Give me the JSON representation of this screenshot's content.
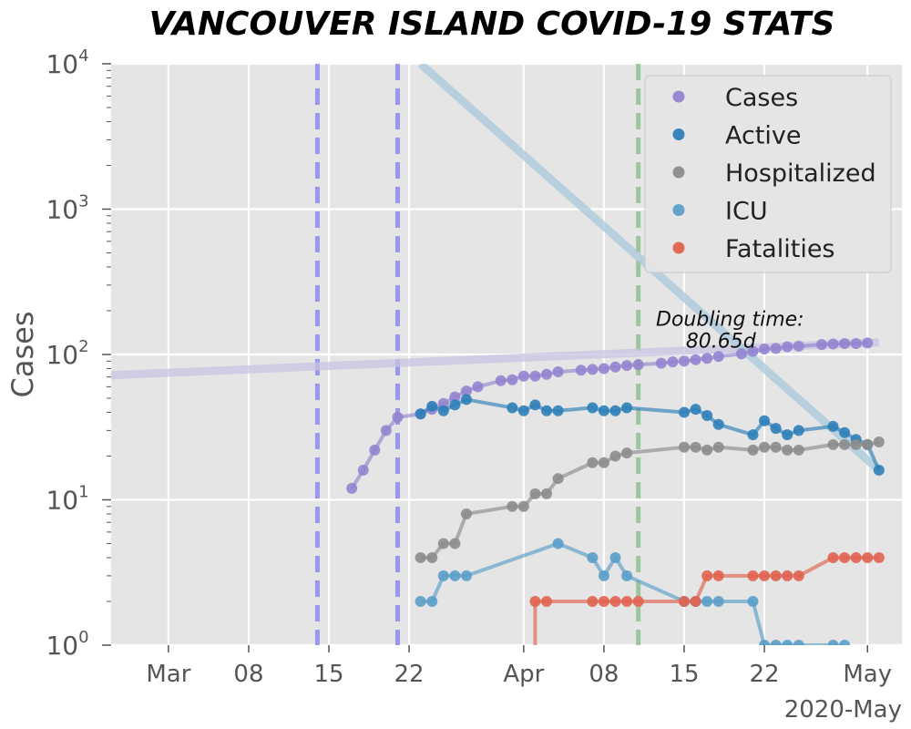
{
  "chart_data": {
    "type": "line",
    "title": "VANCOUVER ISLAND COVID-19 STATS",
    "ylabel": "Cases",
    "xlabel": "",
    "x_offset_label": "2020-May",
    "y_scale": "log",
    "ylim": [
      1,
      10000
    ],
    "xlim": [
      "2020-02-25",
      "2020-05-04"
    ],
    "grid": true,
    "legend_position": "top-right",
    "x_tick_labels": [
      {
        "date": "2020-03-01",
        "label": "Mar"
      },
      {
        "date": "2020-03-08",
        "label": "08"
      },
      {
        "date": "2020-03-15",
        "label": "15"
      },
      {
        "date": "2020-03-22",
        "label": "22"
      },
      {
        "date": "2020-04-01",
        "label": "Apr"
      },
      {
        "date": "2020-04-08",
        "label": "08"
      },
      {
        "date": "2020-04-15",
        "label": "15"
      },
      {
        "date": "2020-04-22",
        "label": "22"
      },
      {
        "date": "2020-05-01",
        "label": "May"
      }
    ],
    "y_tick_labels": [
      {
        "value": 1,
        "base": "10",
        "exp": "0"
      },
      {
        "value": 10,
        "base": "10",
        "exp": "1"
      },
      {
        "value": 100,
        "base": "10",
        "exp": "2"
      },
      {
        "value": 1000,
        "base": "10",
        "exp": "3"
      },
      {
        "value": 10000,
        "base": "10",
        "exp": "4"
      }
    ],
    "series": [
      {
        "name": "Cases",
        "color": "#9484cf",
        "points": [
          [
            "2020-03-17",
            12
          ],
          [
            "2020-03-18",
            16
          ],
          [
            "2020-03-19",
            22
          ],
          [
            "2020-03-20",
            30
          ],
          [
            "2020-03-21",
            37
          ],
          [
            "2020-03-23",
            39
          ],
          [
            "2020-03-24",
            42
          ],
          [
            "2020-03-25",
            46
          ],
          [
            "2020-03-26",
            51
          ],
          [
            "2020-03-27",
            56
          ],
          [
            "2020-03-28",
            60
          ],
          [
            "2020-03-30",
            66
          ],
          [
            "2020-03-31",
            67
          ],
          [
            "2020-04-01",
            71
          ],
          [
            "2020-04-02",
            71
          ],
          [
            "2020-04-03",
            73
          ],
          [
            "2020-04-04",
            76
          ],
          [
            "2020-04-06",
            78
          ],
          [
            "2020-04-07",
            79
          ],
          [
            "2020-04-08",
            80
          ],
          [
            "2020-04-09",
            82
          ],
          [
            "2020-04-10",
            84
          ],
          [
            "2020-04-11",
            85
          ],
          [
            "2020-04-13",
            87
          ],
          [
            "2020-04-14",
            89
          ],
          [
            "2020-04-15",
            90
          ],
          [
            "2020-04-16",
            92
          ],
          [
            "2020-04-17",
            94
          ],
          [
            "2020-04-18",
            97
          ],
          [
            "2020-04-20",
            101
          ],
          [
            "2020-04-21",
            105
          ],
          [
            "2020-04-22",
            109
          ],
          [
            "2020-04-23",
            110
          ],
          [
            "2020-04-24",
            113
          ],
          [
            "2020-04-25",
            114
          ],
          [
            "2020-04-27",
            117
          ],
          [
            "2020-04-28",
            118
          ],
          [
            "2020-04-29",
            119
          ],
          [
            "2020-04-30",
            119
          ],
          [
            "2020-05-01",
            120
          ]
        ]
      },
      {
        "name": "Active",
        "color": "#2e7fb8",
        "points": [
          [
            "2020-03-23",
            39
          ],
          [
            "2020-03-24",
            44
          ],
          [
            "2020-03-25",
            41
          ],
          [
            "2020-03-26",
            45
          ],
          [
            "2020-03-27",
            49
          ],
          [
            "2020-03-31",
            43
          ],
          [
            "2020-04-01",
            41
          ],
          [
            "2020-04-02",
            45
          ],
          [
            "2020-04-03",
            41
          ],
          [
            "2020-04-04",
            41
          ],
          [
            "2020-04-07",
            43
          ],
          [
            "2020-04-08",
            41
          ],
          [
            "2020-04-09",
            41
          ],
          [
            "2020-04-10",
            43
          ],
          [
            "2020-04-15",
            40
          ],
          [
            "2020-04-16",
            42
          ],
          [
            "2020-04-17",
            38
          ],
          [
            "2020-04-18",
            33
          ],
          [
            "2020-04-21",
            28
          ],
          [
            "2020-04-22",
            35
          ],
          [
            "2020-04-23",
            31
          ],
          [
            "2020-04-24",
            28
          ],
          [
            "2020-04-25",
            30
          ],
          [
            "2020-04-28",
            32
          ],
          [
            "2020-04-29",
            29
          ],
          [
            "2020-04-30",
            26
          ],
          [
            "2020-05-01",
            24
          ],
          [
            "2020-05-02",
            16
          ]
        ]
      },
      {
        "name": "Hospitalized",
        "color": "#8c8c8c",
        "points": [
          [
            "2020-03-23",
            4
          ],
          [
            "2020-03-24",
            4
          ],
          [
            "2020-03-25",
            5
          ],
          [
            "2020-03-26",
            5
          ],
          [
            "2020-03-27",
            8
          ],
          [
            "2020-03-31",
            9
          ],
          [
            "2020-04-01",
            9
          ],
          [
            "2020-04-02",
            11
          ],
          [
            "2020-04-03",
            11
          ],
          [
            "2020-04-04",
            14
          ],
          [
            "2020-04-07",
            18
          ],
          [
            "2020-04-08",
            18
          ],
          [
            "2020-04-09",
            20
          ],
          [
            "2020-04-10",
            21
          ],
          [
            "2020-04-15",
            23
          ],
          [
            "2020-04-16",
            23
          ],
          [
            "2020-04-17",
            22
          ],
          [
            "2020-04-18",
            23
          ],
          [
            "2020-04-21",
            22
          ],
          [
            "2020-04-22",
            23
          ],
          [
            "2020-04-23",
            23
          ],
          [
            "2020-04-24",
            22
          ],
          [
            "2020-04-25",
            22
          ],
          [
            "2020-04-28",
            24
          ],
          [
            "2020-04-29",
            24
          ],
          [
            "2020-04-30",
            24
          ],
          [
            "2020-05-01",
            24
          ],
          [
            "2020-05-02",
            25
          ]
        ]
      },
      {
        "name": "ICU",
        "color": "#5b9ec9",
        "points": [
          [
            "2020-03-23",
            2
          ],
          [
            "2020-03-24",
            2
          ],
          [
            "2020-03-25",
            3
          ],
          [
            "2020-03-26",
            3
          ],
          [
            "2020-03-27",
            3
          ],
          [
            "2020-04-04",
            5
          ],
          [
            "2020-04-07",
            4
          ],
          [
            "2020-04-08",
            3
          ],
          [
            "2020-04-09",
            4
          ],
          [
            "2020-04-10",
            3
          ],
          [
            "2020-04-15",
            2
          ],
          [
            "2020-04-16",
            2
          ],
          [
            "2020-04-17",
            2
          ],
          [
            "2020-04-18",
            2
          ],
          [
            "2020-04-21",
            2
          ],
          [
            "2020-04-22",
            1
          ],
          [
            "2020-04-23",
            1
          ],
          [
            "2020-04-24",
            1
          ],
          [
            "2020-04-25",
            1
          ],
          [
            "2020-04-28",
            1
          ],
          [
            "2020-04-29",
            1
          ]
        ]
      },
      {
        "name": "Fatalities",
        "color": "#e0634f",
        "points": [
          [
            "2020-04-02",
            2
          ],
          [
            "2020-04-03",
            2
          ],
          [
            "2020-04-07",
            2
          ],
          [
            "2020-04-08",
            2
          ],
          [
            "2020-04-09",
            2
          ],
          [
            "2020-04-10",
            2
          ],
          [
            "2020-04-11",
            2
          ],
          [
            "2020-04-15",
            2
          ],
          [
            "2020-04-16",
            2
          ],
          [
            "2020-04-17",
            3
          ],
          [
            "2020-04-18",
            3
          ],
          [
            "2020-04-21",
            3
          ],
          [
            "2020-04-22",
            3
          ],
          [
            "2020-04-23",
            3
          ],
          [
            "2020-04-24",
            3
          ],
          [
            "2020-04-25",
            3
          ],
          [
            "2020-04-28",
            4
          ],
          [
            "2020-04-29",
            4
          ],
          [
            "2020-04-30",
            4
          ],
          [
            "2020-05-01",
            4
          ],
          [
            "2020-05-02",
            4
          ]
        ],
        "drop_to_axis_before": "2020-04-02"
      }
    ],
    "trend_lines": [
      {
        "color": "#c9c4e3",
        "from": [
          "2020-02-25",
          72
        ],
        "to": [
          "2020-05-02",
          121
        ]
      },
      {
        "color": "#a9c9dc",
        "from": [
          "2020-03-23",
          10000
        ],
        "to": [
          "2020-05-02",
          16
        ]
      }
    ],
    "vertical_lines": [
      {
        "date": "2020-03-14",
        "color": "#8b8bf0"
      },
      {
        "date": "2020-03-21",
        "color": "#8b8bf0"
      },
      {
        "date": "2020-04-11",
        "color": "#8fc18f"
      }
    ],
    "annotation": {
      "line1": "Doubling time:",
      "line2": "80.65d",
      "anchor": [
        "2020-04-19",
        115
      ]
    }
  }
}
